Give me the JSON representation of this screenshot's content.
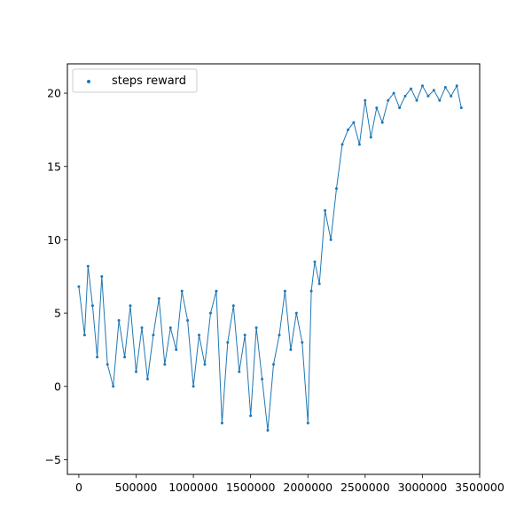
{
  "chart_data": {
    "type": "line",
    "marker": "point",
    "color": "#1f77b4",
    "legend": {
      "label": "steps reward",
      "placement": "top-left"
    },
    "xlim": [
      -100000,
      3500000
    ],
    "ylim": [
      -6,
      22
    ],
    "x_ticks": [
      0,
      500000,
      1000000,
      1500000,
      2000000,
      2500000,
      3000000,
      3500000
    ],
    "x_tick_labels": [
      "0",
      "500000",
      "1000000",
      "1500000",
      "2000000",
      "2500000",
      "3000000",
      "3500000"
    ],
    "y_ticks": [
      -5,
      0,
      5,
      10,
      15,
      20
    ],
    "y_tick_labels": [
      "−5",
      "0",
      "5",
      "10",
      "15",
      "20"
    ],
    "grid": false,
    "series": [
      {
        "name": "steps reward",
        "x": [
          0,
          50000,
          80000,
          120000,
          160000,
          200000,
          250000,
          300000,
          350000,
          400000,
          450000,
          500000,
          550000,
          600000,
          650000,
          700000,
          750000,
          800000,
          850000,
          900000,
          950000,
          1000000,
          1050000,
          1100000,
          1150000,
          1200000,
          1250000,
          1300000,
          1350000,
          1400000,
          1450000,
          1500000,
          1550000,
          1600000,
          1650000,
          1700000,
          1750000,
          1800000,
          1850000,
          1900000,
          1950000,
          2000000,
          2030000,
          2060000,
          2100000,
          2150000,
          2200000,
          2250000,
          2300000,
          2350000,
          2400000,
          2450000,
          2500000,
          2550000,
          2600000,
          2650000,
          2700000,
          2750000,
          2800000,
          2850000,
          2900000,
          2950000,
          3000000,
          3050000,
          3100000,
          3150000,
          3200000,
          3250000,
          3300000,
          3340000
        ],
        "y": [
          6.8,
          3.5,
          8.2,
          5.5,
          2.0,
          7.5,
          1.5,
          0.0,
          4.5,
          2.0,
          5.5,
          1.0,
          4.0,
          0.5,
          3.5,
          6.0,
          1.5,
          4.0,
          2.5,
          6.5,
          4.5,
          0.0,
          3.5,
          1.5,
          5.0,
          6.5,
          -2.5,
          3.0,
          5.5,
          1.0,
          3.5,
          -2.0,
          4.0,
          0.5,
          -3.0,
          1.5,
          3.5,
          6.5,
          2.5,
          5.0,
          3.0,
          -2.5,
          6.5,
          8.5,
          7.0,
          12.0,
          10.0,
          13.5,
          16.5,
          17.5,
          18.0,
          16.5,
          19.5,
          17.0,
          19.0,
          18.0,
          19.5,
          20.0,
          19.0,
          19.8,
          20.3,
          19.5,
          20.5,
          19.8,
          20.2,
          19.5,
          20.4,
          19.8,
          20.5,
          19.0
        ]
      }
    ]
  }
}
